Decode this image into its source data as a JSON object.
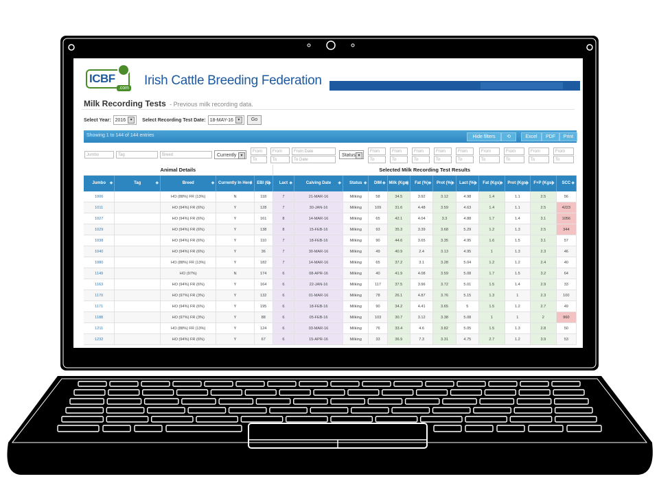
{
  "header": {
    "logo_text": "ICBF",
    "logo_suffix": ".com",
    "title": "Irish Cattle Breeding Federation"
  },
  "page": {
    "title": "Milk Recording Tests",
    "subtitle": "- Previous milk recording data."
  },
  "selectors": {
    "year_label": "Select Year:",
    "year_value": "2016",
    "date_label": "Select Recording Test Date:",
    "date_value": "18-MAY-16",
    "go_label": "Go"
  },
  "toolbar": {
    "showing_text": "Showing 1 to 144 of 144 entries",
    "hide_filters_label": "Hide filters",
    "refresh_label": "⟲",
    "excel_label": "Excel",
    "pdf_label": "PDF",
    "print_label": "Print"
  },
  "filters": {
    "jumbo_placeholder": "Jumbo",
    "tag_placeholder": "Tag",
    "breed_placeholder": "Breed",
    "currently_label": "Currently",
    "from_date_placeholder": "From Date",
    "to_date_placeholder": "To Date",
    "status_label": "Status",
    "from_placeholder": "From",
    "to_placeholder": "To"
  },
  "table": {
    "group_animal": "Animal Details",
    "group_results": "Selected Milk Recording Test Results",
    "columns": [
      "Jumbo",
      "Tag",
      "Breed",
      "Currently In Herd",
      "EBI (€)",
      "Lact",
      "Calving Date",
      "Status",
      "DIM",
      "Milk (Kgs)",
      "Fat (%)",
      "Prot (%)",
      "Lact (%)",
      "Fat (Kgs)",
      "Prot (Kgs)",
      "F+P (Kgs)",
      "SCC"
    ],
    "rows": [
      [
        "1006",
        "",
        "HO (88%) FR (13%)",
        "N",
        "118",
        "7",
        "21-MAR-16",
        "Milking",
        "58",
        "34.5",
        "3.92",
        "3.12",
        "4.98",
        "1.4",
        "1.1",
        "2.5",
        "56"
      ],
      [
        "1011",
        "",
        "HO (94%) FR (6%)",
        "Y",
        "128",
        "7",
        "30-JAN-16",
        "Milking",
        "109",
        "31.6",
        "4.48",
        "3.59",
        "4.63",
        "1.4",
        "1.1",
        "2.5",
        "4223"
      ],
      [
        "1027",
        "",
        "HO (94%) FR (6%)",
        "Y",
        "161",
        "8",
        "14-MAR-16",
        "Milking",
        "65",
        "42.1",
        "4.04",
        "3.3",
        "4.88",
        "1.7",
        "1.4",
        "3.1",
        "1056"
      ],
      [
        "1029",
        "",
        "HO (94%) FR (6%)",
        "Y",
        "138",
        "8",
        "15-FEB-16",
        "Milking",
        "93",
        "35.3",
        "3.39",
        "3.68",
        "5.29",
        "1.2",
        "1.3",
        "2.5",
        "344"
      ],
      [
        "1038",
        "",
        "HO (94%) FR (6%)",
        "Y",
        "110",
        "7",
        "18-FEB-16",
        "Milking",
        "90",
        "44.6",
        "3.65",
        "3.35",
        "4.95",
        "1.6",
        "1.5",
        "3.1",
        "57"
      ],
      [
        "1040",
        "",
        "HO (94%) FR (6%)",
        "Y",
        "36",
        "7",
        "30-MAR-16",
        "Milking",
        "49",
        "40.9",
        "2.4",
        "3.13",
        "4.95",
        "1",
        "1.3",
        "2.3",
        "46"
      ],
      [
        "1080",
        "",
        "HO (88%) FR (13%)",
        "Y",
        "182",
        "7",
        "14-MAR-16",
        "Milking",
        "65",
        "37.2",
        "3.1",
        "3.28",
        "5.04",
        "1.2",
        "1.2",
        "2.4",
        "40"
      ],
      [
        "1149",
        "",
        "HO (97%)",
        "N",
        "174",
        "6",
        "08-APR-16",
        "Milking",
        "40",
        "41.9",
        "4.08",
        "3.59",
        "5.08",
        "1.7",
        "1.5",
        "3.2",
        "64"
      ],
      [
        "1163",
        "",
        "HO (94%) FR (6%)",
        "Y",
        "164",
        "6",
        "22-JAN-16",
        "Milking",
        "117",
        "37.5",
        "3.96",
        "3.72",
        "5.01",
        "1.5",
        "1.4",
        "2.9",
        "33"
      ],
      [
        "1170",
        "",
        "HO (97%) FR (3%)",
        "Y",
        "132",
        "6",
        "01-MAR-16",
        "Milking",
        "78",
        "26.1",
        "4.87",
        "3.76",
        "5.15",
        "1.3",
        "1",
        "2.3",
        "100"
      ],
      [
        "1171",
        "",
        "HO (94%) FR (6%)",
        "Y",
        "195",
        "6",
        "18-FEB-16",
        "Milking",
        "90",
        "34.2",
        "4.41",
        "3.65",
        "5",
        "1.5",
        "1.2",
        "2.7",
        "49"
      ],
      [
        "1188",
        "",
        "HO (97%) FR (3%)",
        "Y",
        "88",
        "6",
        "05-FEB-16",
        "Milking",
        "103",
        "30.7",
        "3.12",
        "3.38",
        "5.08",
        "1",
        "1",
        "2",
        "960"
      ],
      [
        "1211",
        "",
        "HO (88%) FR (13%)",
        "Y",
        "124",
        "6",
        "03-MAR-16",
        "Milking",
        "76",
        "33.4",
        "4.6",
        "3.82",
        "5.05",
        "1.5",
        "1.3",
        "2.8",
        "50"
      ],
      [
        "1232",
        "",
        "HO (94%) FR (6%)",
        "Y",
        "67",
        "6",
        "15-APR-16",
        "Milking",
        "33",
        "36.9",
        "7.3",
        "3.31",
        "4.75",
        "2.7",
        "1.2",
        "3.9",
        "53"
      ]
    ],
    "highlight_scc_rows": [
      1,
      2,
      3,
      11
    ]
  },
  "colors": {
    "header_blue": "#1e5aa0",
    "table_header_blue": "#2e86c1",
    "logo_green": "#4a8c2a",
    "lact_purple": "#ece4f4",
    "milk_green": "#e6f2e1",
    "scc_red": "#f3c2c2"
  }
}
